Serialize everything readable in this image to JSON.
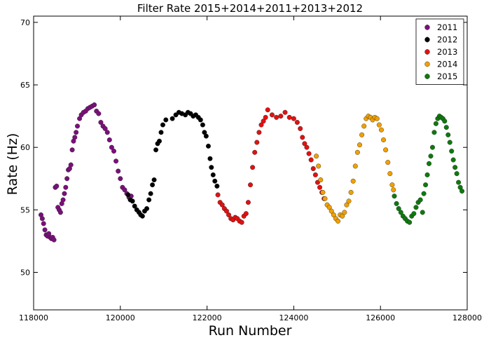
{
  "chart_data": {
    "type": "scatter",
    "title": "Filter Rate 2015+2014+2011+2013+2012",
    "xlabel": "Run Number",
    "ylabel": "Rate (Hz)",
    "xlim": [
      118000,
      128000
    ],
    "ylim": [
      47,
      70.5
    ],
    "xticks": [
      118000,
      120000,
      122000,
      124000,
      126000,
      128000
    ],
    "yticks": [
      50,
      55,
      60,
      65,
      70
    ],
    "xtick_labels": [
      "118000",
      "120000",
      "122000",
      "124000",
      "126000",
      "128000"
    ],
    "ytick_labels": [
      "50",
      "55",
      "60",
      "65",
      "70"
    ],
    "grid": false,
    "legend": "top-right",
    "series": [
      {
        "name": "2011",
        "color": "#7b0f7b",
        "points": [
          [
            118170,
            54.6
          ],
          [
            118200,
            54.3
          ],
          [
            118230,
            53.9
          ],
          [
            118260,
            53.4
          ],
          [
            118290,
            53.0
          ],
          [
            118320,
            52.9
          ],
          [
            118350,
            53.1
          ],
          [
            118380,
            52.8
          ],
          [
            118410,
            52.7
          ],
          [
            118440,
            52.8
          ],
          [
            118470,
            52.6
          ],
          [
            118500,
            56.8
          ],
          [
            118530,
            56.9
          ],
          [
            118560,
            55.2
          ],
          [
            118590,
            55.0
          ],
          [
            118620,
            54.8
          ],
          [
            118650,
            55.5
          ],
          [
            118680,
            55.8
          ],
          [
            118710,
            56.3
          ],
          [
            118740,
            56.8
          ],
          [
            118770,
            57.5
          ],
          [
            118800,
            58.2
          ],
          [
            118830,
            58.3
          ],
          [
            118860,
            58.6
          ],
          [
            118890,
            59.8
          ],
          [
            118920,
            60.5
          ],
          [
            118950,
            60.8
          ],
          [
            118980,
            61.2
          ],
          [
            119010,
            61.7
          ],
          [
            119060,
            62.3
          ],
          [
            119100,
            62.6
          ],
          [
            119150,
            62.8
          ],
          [
            119200,
            62.9
          ],
          [
            119250,
            63.1
          ],
          [
            119300,
            63.2
          ],
          [
            119350,
            63.3
          ],
          [
            119400,
            63.4
          ],
          [
            119450,
            62.9
          ],
          [
            119500,
            62.7
          ],
          [
            119550,
            62.0
          ],
          [
            119600,
            61.7
          ],
          [
            119650,
            61.5
          ],
          [
            119700,
            61.2
          ],
          [
            119750,
            60.6
          ],
          [
            119800,
            60.0
          ],
          [
            119850,
            59.7
          ],
          [
            119900,
            58.9
          ],
          [
            119950,
            58.1
          ],
          [
            120000,
            57.5
          ],
          [
            120050,
            56.8
          ],
          [
            120100,
            56.6
          ],
          [
            120150,
            56.3
          ],
          [
            120200,
            56.0
          ],
          [
            120250,
            56.1
          ]
        ]
      },
      {
        "name": "2012",
        "color": "#000000",
        "points": [
          [
            120180,
            56.2
          ],
          [
            120230,
            55.8
          ],
          [
            120280,
            55.7
          ],
          [
            120330,
            55.3
          ],
          [
            120380,
            55.0
          ],
          [
            120430,
            54.8
          ],
          [
            120470,
            54.6
          ],
          [
            120510,
            54.5
          ],
          [
            120560,
            54.9
          ],
          [
            120610,
            55.1
          ],
          [
            120660,
            55.8
          ],
          [
            120700,
            56.3
          ],
          [
            120740,
            57.0
          ],
          [
            120780,
            57.4
          ],
          [
            120820,
            59.8
          ],
          [
            120860,
            60.3
          ],
          [
            120900,
            60.5
          ],
          [
            120940,
            61.2
          ],
          [
            120980,
            61.8
          ],
          [
            121050,
            62.2
          ],
          [
            121200,
            62.3
          ],
          [
            121280,
            62.6
          ],
          [
            121350,
            62.8
          ],
          [
            121420,
            62.7
          ],
          [
            121500,
            62.6
          ],
          [
            121560,
            62.8
          ],
          [
            121620,
            62.7
          ],
          [
            121680,
            62.5
          ],
          [
            121740,
            62.6
          ],
          [
            121800,
            62.4
          ],
          [
            121850,
            62.2
          ],
          [
            121900,
            61.8
          ],
          [
            121940,
            61.2
          ],
          [
            121980,
            60.9
          ],
          [
            122030,
            60.1
          ],
          [
            122070,
            59.1
          ],
          [
            122100,
            58.4
          ],
          [
            122140,
            57.8
          ],
          [
            122180,
            57.3
          ],
          [
            122230,
            56.9
          ]
        ]
      },
      {
        "name": "2013",
        "color": "#e41010",
        "points": [
          [
            122250,
            56.2
          ],
          [
            122300,
            55.6
          ],
          [
            122350,
            55.4
          ],
          [
            122400,
            55.1
          ],
          [
            122450,
            54.9
          ],
          [
            122500,
            54.6
          ],
          [
            122550,
            54.3
          ],
          [
            122600,
            54.2
          ],
          [
            122650,
            54.4
          ],
          [
            122700,
            54.3
          ],
          [
            122750,
            54.1
          ],
          [
            122800,
            54.0
          ],
          [
            122850,
            54.5
          ],
          [
            122900,
            54.7
          ],
          [
            122950,
            55.6
          ],
          [
            123000,
            57.0
          ],
          [
            123050,
            58.4
          ],
          [
            123100,
            59.6
          ],
          [
            123150,
            60.4
          ],
          [
            123200,
            61.2
          ],
          [
            123250,
            61.8
          ],
          [
            123300,
            62.1
          ],
          [
            123350,
            62.4
          ],
          [
            123400,
            63.0
          ],
          [
            123500,
            62.6
          ],
          [
            123600,
            62.4
          ],
          [
            123700,
            62.5
          ],
          [
            123800,
            62.8
          ],
          [
            123900,
            62.4
          ],
          [
            124000,
            62.3
          ],
          [
            124080,
            62.0
          ],
          [
            124150,
            61.5
          ],
          [
            124200,
            60.8
          ],
          [
            124250,
            60.3
          ],
          [
            124300,
            60.0
          ],
          [
            124350,
            59.5
          ],
          [
            124400,
            59.0
          ],
          [
            124450,
            58.3
          ],
          [
            124500,
            57.8
          ],
          [
            124550,
            57.2
          ],
          [
            124600,
            56.8
          ],
          [
            124650,
            56.4
          ],
          [
            124700,
            55.9
          ]
        ]
      },
      {
        "name": "2014",
        "color": "#f0a000",
        "points": [
          [
            124520,
            59.3
          ],
          [
            124570,
            58.5
          ],
          [
            124620,
            57.4
          ],
          [
            124670,
            56.4
          ],
          [
            124720,
            55.9
          ],
          [
            124770,
            55.4
          ],
          [
            124820,
            55.2
          ],
          [
            124870,
            54.9
          ],
          [
            124920,
            54.6
          ],
          [
            124970,
            54.3
          ],
          [
            125020,
            54.1
          ],
          [
            125070,
            54.6
          ],
          [
            125120,
            54.5
          ],
          [
            125170,
            54.8
          ],
          [
            125220,
            55.4
          ],
          [
            125270,
            55.7
          ],
          [
            125320,
            56.4
          ],
          [
            125370,
            57.3
          ],
          [
            125420,
            58.5
          ],
          [
            125470,
            59.6
          ],
          [
            125520,
            60.2
          ],
          [
            125570,
            61.0
          ],
          [
            125620,
            61.7
          ],
          [
            125670,
            62.3
          ],
          [
            125720,
            62.5
          ],
          [
            125770,
            62.4
          ],
          [
            125820,
            62.2
          ],
          [
            125870,
            62.4
          ],
          [
            125920,
            62.3
          ],
          [
            125970,
            61.8
          ],
          [
            126020,
            61.4
          ],
          [
            126070,
            60.6
          ],
          [
            126120,
            59.8
          ],
          [
            126170,
            58.8
          ],
          [
            126220,
            57.9
          ],
          [
            126270,
            57.0
          ],
          [
            126300,
            56.6
          ]
        ]
      },
      {
        "name": "2015",
        "color": "#0e7a0e",
        "points": [
          [
            126320,
            56.1
          ],
          [
            126370,
            55.5
          ],
          [
            126420,
            55.1
          ],
          [
            126470,
            54.8
          ],
          [
            126520,
            54.5
          ],
          [
            126570,
            54.3
          ],
          [
            126620,
            54.1
          ],
          [
            126670,
            54.0
          ],
          [
            126720,
            54.5
          ],
          [
            126770,
            54.7
          ],
          [
            126820,
            55.2
          ],
          [
            126870,
            55.6
          ],
          [
            126920,
            55.8
          ],
          [
            126970,
            54.8
          ],
          [
            127000,
            56.3
          ],
          [
            127040,
            57.0
          ],
          [
            127080,
            57.8
          ],
          [
            127120,
            58.7
          ],
          [
            127160,
            59.3
          ],
          [
            127200,
            60.0
          ],
          [
            127240,
            61.2
          ],
          [
            127280,
            61.9
          ],
          [
            127320,
            62.3
          ],
          [
            127360,
            62.5
          ],
          [
            127400,
            62.4
          ],
          [
            127440,
            62.3
          ],
          [
            127480,
            62.1
          ],
          [
            127520,
            61.6
          ],
          [
            127560,
            61.0
          ],
          [
            127600,
            60.4
          ],
          [
            127640,
            59.7
          ],
          [
            127680,
            59.0
          ],
          [
            127720,
            58.4
          ],
          [
            127760,
            57.9
          ],
          [
            127800,
            57.2
          ],
          [
            127840,
            56.8
          ],
          [
            127880,
            56.5
          ]
        ]
      }
    ]
  }
}
